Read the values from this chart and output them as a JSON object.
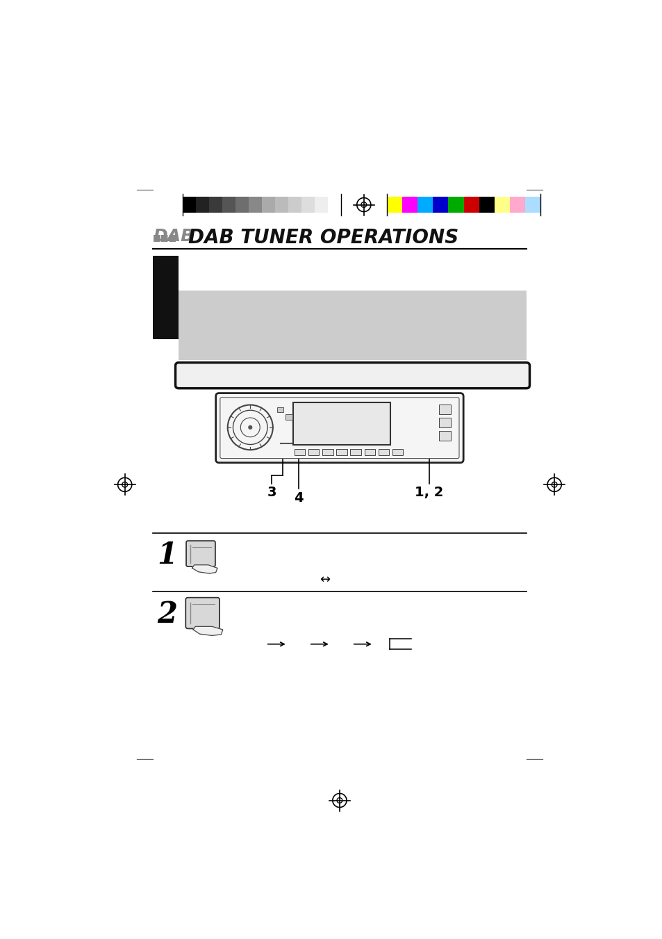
{
  "bg_color": "#ffffff",
  "page_width": 9.54,
  "page_height": 13.51,
  "title_text": "DAB TUNER OPERATIONS",
  "color_bar_grayscale": [
    "#000000",
    "#222222",
    "#3a3a3a",
    "#555555",
    "#6e6e6e",
    "#888888",
    "#aaaaaa",
    "#bbbbbb",
    "#cccccc",
    "#dddddd",
    "#eeeeee",
    "#ffffff"
  ],
  "color_bar_colors": [
    "#ffff00",
    "#ff00ff",
    "#00aaff",
    "#0000cc",
    "#00aa00",
    "#cc0000",
    "#000000",
    "#ffff88",
    "#ffaacc",
    "#aaddff"
  ],
  "gray_box_color": "#cccccc",
  "black_sidebar_color": "#111111",
  "step_line_color": "#000000"
}
